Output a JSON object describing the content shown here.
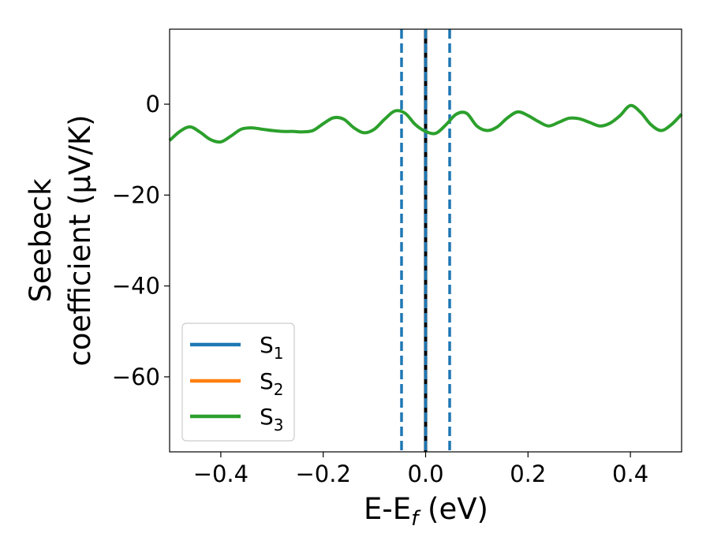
{
  "chart_data": {
    "type": "line",
    "xlabel": {
      "main": "E-E",
      "sub": "f",
      "tail": " (eV)"
    },
    "ylabel": {
      "line1": "Seebeck",
      "line2": "coefficient  (μV/K)"
    },
    "xlim": [
      -0.5,
      0.5
    ],
    "ylim": [
      -76.5,
      16.5
    ],
    "xticks": [
      -0.4,
      -0.2,
      0.0,
      0.2,
      0.4
    ],
    "xtick_labels": [
      "−0.4",
      "−0.2",
      "0.0",
      "0.2",
      "0.4"
    ],
    "yticks": [
      0,
      -20,
      -40,
      -60
    ],
    "ytick_labels": [
      "0",
      "−20",
      "−40",
      "−60"
    ],
    "grid": false,
    "legend_position": "lower-left",
    "series": [
      {
        "name": "S",
        "sub": "1",
        "color": "#1f77b4",
        "x": [],
        "y": []
      },
      {
        "name": "S",
        "sub": "2",
        "color": "#ff7f0e",
        "x": [],
        "y": []
      },
      {
        "name": "S",
        "sub": "3",
        "color": "#2ca02c",
        "x": [
          -0.5,
          -0.48,
          -0.46,
          -0.44,
          -0.42,
          -0.4,
          -0.38,
          -0.36,
          -0.34,
          -0.32,
          -0.3,
          -0.28,
          -0.26,
          -0.24,
          -0.22,
          -0.2,
          -0.18,
          -0.16,
          -0.14,
          -0.12,
          -0.1,
          -0.08,
          -0.06,
          -0.04,
          -0.02,
          0.0,
          0.02,
          0.04,
          0.06,
          0.08,
          0.1,
          0.12,
          0.14,
          0.16,
          0.18,
          0.2,
          0.22,
          0.24,
          0.26,
          0.28,
          0.3,
          0.32,
          0.34,
          0.36,
          0.38,
          0.4,
          0.42,
          0.44,
          0.46,
          0.48,
          0.5
        ],
        "y": [
          -8.0,
          -6.0,
          -5.0,
          -6.2,
          -7.8,
          -8.3,
          -7.0,
          -5.5,
          -5.2,
          -5.5,
          -5.8,
          -6.0,
          -6.0,
          -6.1,
          -5.8,
          -4.3,
          -3.0,
          -3.3,
          -5.2,
          -6.3,
          -5.5,
          -3.3,
          -1.5,
          -2.0,
          -4.5,
          -6.0,
          -6.4,
          -4.5,
          -2.2,
          -2.0,
          -4.8,
          -5.8,
          -5.0,
          -3.0,
          -1.7,
          -2.5,
          -3.8,
          -4.8,
          -4.0,
          -3.1,
          -3.2,
          -4.0,
          -4.8,
          -4.2,
          -2.5,
          -0.3,
          -1.8,
          -4.5,
          -5.8,
          -4.5,
          -2.2
        ]
      }
    ],
    "vlines": [
      {
        "x": -0.047,
        "style": "dashed",
        "color": "#1f77b4"
      },
      {
        "x": 0.0,
        "style": "solid",
        "color": "#000000"
      },
      {
        "x": 0.0,
        "style": "dashed",
        "color": "#1f77b4"
      },
      {
        "x": 0.047,
        "style": "dashed",
        "color": "#1f77b4"
      }
    ]
  }
}
